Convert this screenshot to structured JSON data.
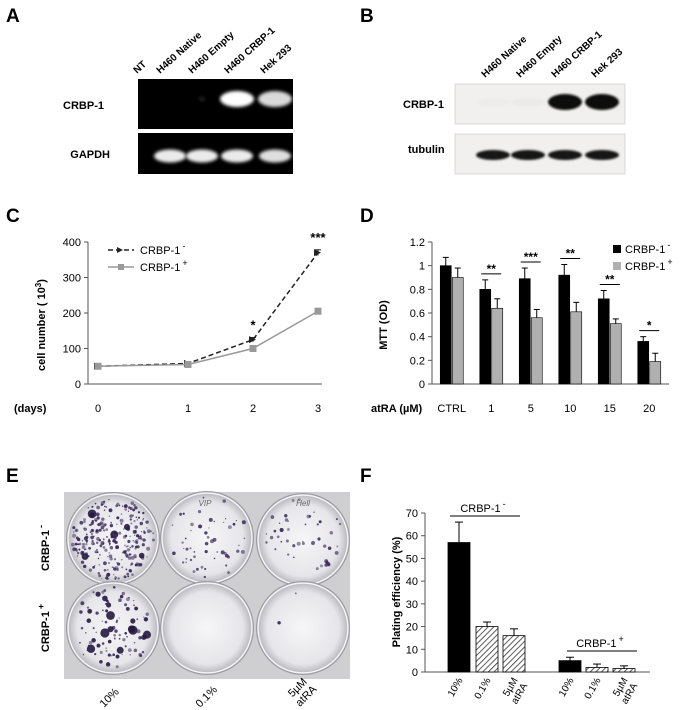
{
  "panels": {
    "A": {
      "letter": "A",
      "lanes": [
        "NT",
        "H460 Native",
        "H460 Empty",
        "H460 CRBP-1",
        "Hek 293"
      ],
      "rows": [
        "CRBP-1",
        "GAPDH"
      ],
      "intensities": {
        "CRBP-1": [
          0,
          0,
          0.15,
          1,
          0.85
        ],
        "GAPDH": [
          0,
          1,
          1,
          1,
          0.95
        ]
      }
    },
    "B": {
      "letter": "B",
      "lanes": [
        "H460 Native",
        "H460 Empty",
        "H460 CRBP-1",
        "Hek 293"
      ],
      "rows": [
        "CRBP-1",
        "tubulin"
      ],
      "intensities": {
        "CRBP-1": [
          0.05,
          0.08,
          1,
          1
        ],
        "tubulin": [
          0.9,
          0.9,
          0.9,
          0.95
        ]
      }
    },
    "C": {
      "letter": "C",
      "ylabel_main": "cell number ( 10",
      "ylabel_sup": "3",
      "ylabel_end": ")",
      "xunit": "(days)",
      "legend_tag": "CRBP-1",
      "legend_minus": "-",
      "legend_plus": "+",
      "sig": [
        {
          "text": "*",
          "day": 2
        },
        {
          "text": "***",
          "day": 3
        }
      ]
    },
    "D": {
      "letter": "D",
      "ylabel": "MTT (OD)",
      "xunit": "atRA (µM)",
      "legend_tag": "CRBP-1",
      "legend_minus": "-",
      "legend_plus": "+",
      "sig": [
        "",
        "**",
        "***",
        "**",
        "**",
        "*"
      ]
    },
    "E": {
      "letter": "E",
      "row_tag": "CRBP-1",
      "row_minus": "-",
      "row_plus": "+",
      "col_labels": [
        "10%",
        "0.1%",
        "5µM atRA"
      ],
      "lid_marks": [
        "VIP",
        "Hell"
      ]
    },
    "F": {
      "letter": "F",
      "ylabel": "Plating efficiency (%)",
      "group_tag": "CRBP-1",
      "group_minus": "-",
      "group_plus": "+",
      "x_labels": [
        "10%",
        "0.1%",
        "5µM atRA",
        "10%",
        "0.1%",
        "5µM atRA"
      ]
    }
  },
  "chart_data": [
    {
      "panel": "C",
      "type": "line",
      "x": [
        0,
        1,
        2,
        3
      ],
      "series": [
        {
          "name": "CRBP-1 -",
          "values": [
            50,
            58,
            125,
            370
          ],
          "errors": [
            3,
            3,
            6,
            8
          ]
        },
        {
          "name": "CRBP-1 +",
          "values": [
            50,
            55,
            100,
            205
          ],
          "errors": [
            3,
            3,
            5,
            6
          ]
        }
      ],
      "ylim": [
        0,
        400
      ],
      "yticks": [
        0,
        100,
        200,
        300,
        400
      ],
      "xticks": [
        0,
        1,
        2,
        3
      ],
      "legend": "top-left",
      "grid": false
    },
    {
      "panel": "D",
      "type": "bar",
      "categories": [
        "CTRL",
        "1",
        "5",
        "10",
        "15",
        "20"
      ],
      "series": [
        {
          "name": "CRBP-1 -",
          "values": [
            1.0,
            0.8,
            0.89,
            0.92,
            0.72,
            0.36
          ],
          "errors": [
            0.07,
            0.08,
            0.09,
            0.09,
            0.07,
            0.04
          ],
          "color": "#000000"
        },
        {
          "name": "CRBP-1 +",
          "values": [
            0.9,
            0.64,
            0.56,
            0.61,
            0.51,
            0.19
          ],
          "errors": [
            0.08,
            0.08,
            0.07,
            0.08,
            0.04,
            0.07
          ],
          "color": "#b0b0b0"
        }
      ],
      "ylim": [
        0,
        1.2
      ],
      "yticks": [
        0,
        0.2,
        0.4,
        0.6,
        0.8,
        1,
        1.2
      ],
      "ytick_labels": [
        "0",
        "0.2",
        "0.4",
        "0.6",
        "0.8",
        "1",
        "1.2"
      ],
      "legend": "top-right",
      "grid": false
    },
    {
      "panel": "F",
      "type": "bar",
      "categories": [
        "10%",
        "0.1%",
        "5µM atRA",
        "10%",
        "0.1%",
        "5µM atRA"
      ],
      "values": [
        57,
        20,
        16,
        5,
        2,
        1.5
      ],
      "errors": [
        9,
        2,
        3,
        1.5,
        1.5,
        1.2
      ],
      "fills": [
        "solid",
        "hatch",
        "hatch",
        "solid",
        "hatch",
        "hatch"
      ],
      "ylim": [
        0,
        70
      ],
      "yticks": [
        0,
        10,
        20,
        30,
        40,
        50,
        60,
        70
      ],
      "grid": false
    }
  ]
}
